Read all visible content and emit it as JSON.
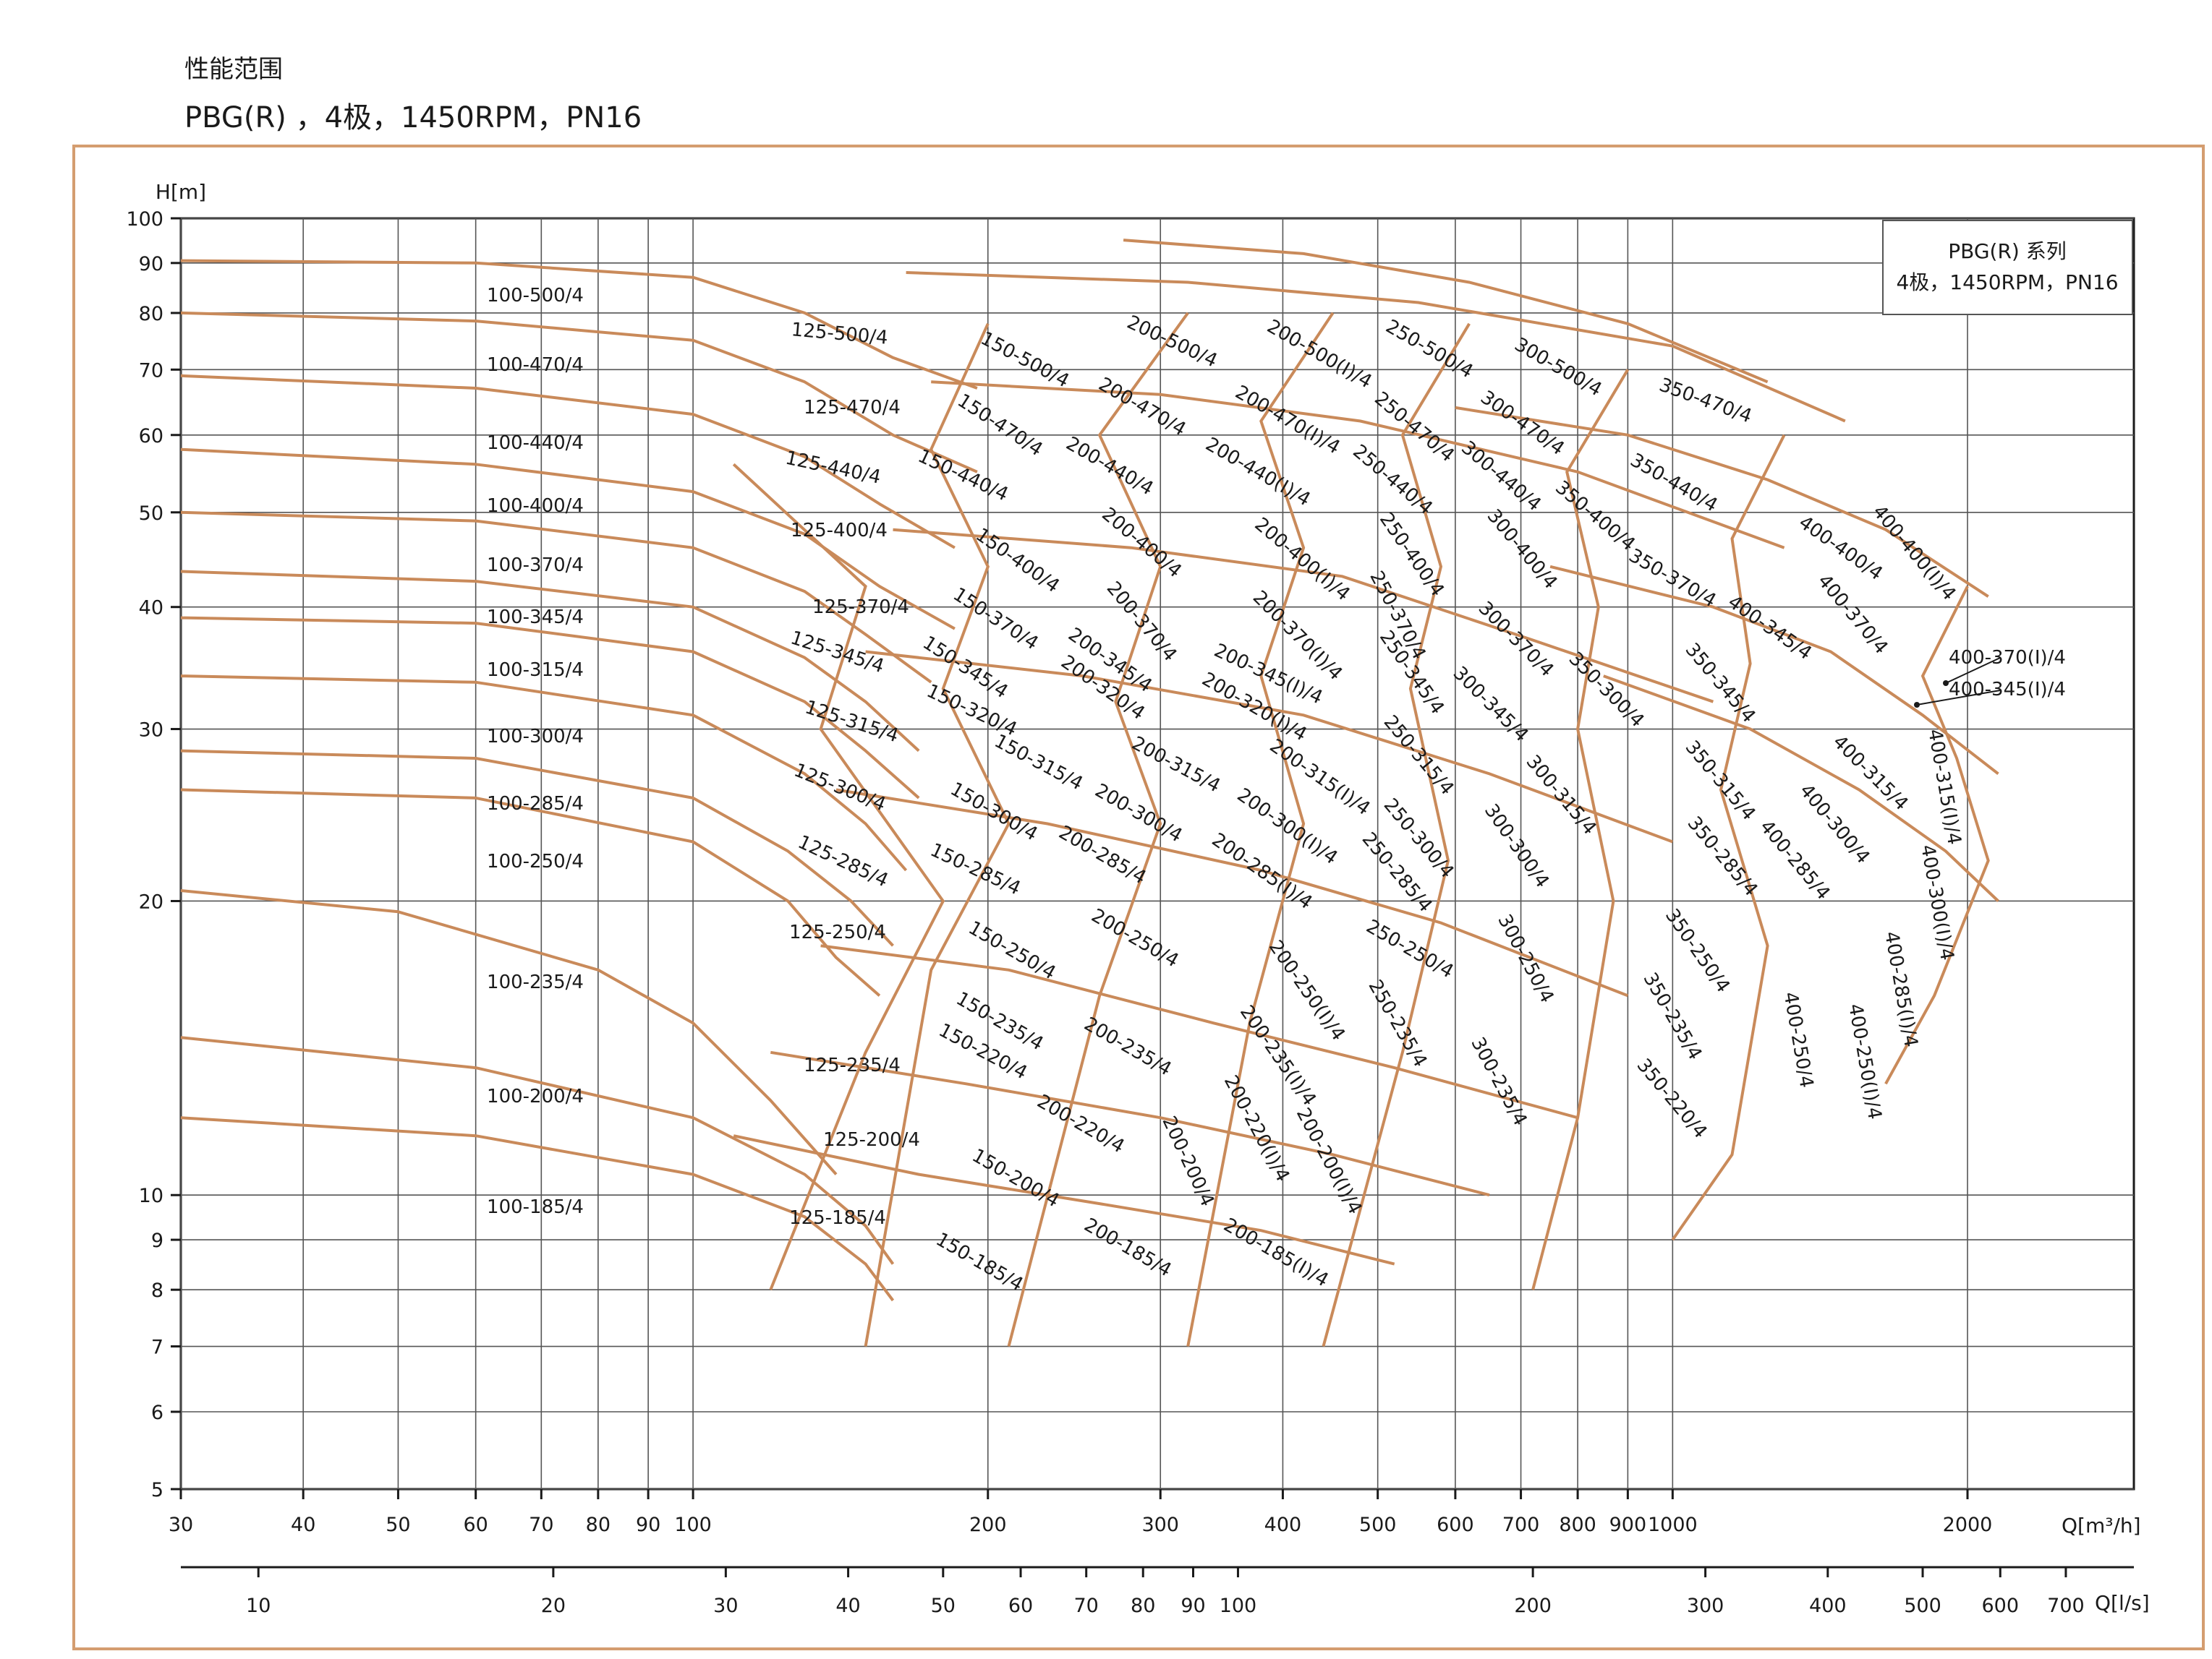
{
  "header": {
    "title": "性能范围",
    "subtitle": "PBG(R) ，4极，1450RPM，PN16"
  },
  "colors": {
    "curve": "#c98a5a",
    "frame": "#d49d70",
    "grid": "#555555",
    "axis": "#1a1a1a"
  },
  "chart_data": {
    "type": "line",
    "title": "性能范围",
    "subtitle": "PBG(R) ，4极，1450RPM，PN16",
    "legend_box": [
      "PBG(R) 系列",
      "4极，1450RPM，PN16"
    ],
    "legend_placement": "top-right",
    "x_scale": "log",
    "y_scale": "log",
    "grid": true,
    "xlabel": "Q[m³/h]",
    "x2label": "Q[l/s]",
    "ylabel": "H[m]",
    "xlim": [
      30,
      2200
    ],
    "ylim": [
      5,
      100
    ],
    "x_ticks": [
      {
        "v": 30,
        "t": "30"
      },
      {
        "v": 40,
        "t": "40"
      },
      {
        "v": 50,
        "t": "50"
      },
      {
        "v": 60,
        "t": "60"
      },
      {
        "v": 70,
        "t": "70"
      },
      {
        "v": 80,
        "t": "80"
      },
      {
        "v": 90,
        "t": "90"
      },
      {
        "v": 100,
        "t": "100"
      },
      {
        "v": 200,
        "t": "200"
      },
      {
        "v": 300,
        "t": "300"
      },
      {
        "v": 400,
        "t": "400"
      },
      {
        "v": 500,
        "t": "500"
      },
      {
        "v": 600,
        "t": "600"
      },
      {
        "v": 700,
        "t": "700"
      },
      {
        "v": 800,
        "t": "800"
      },
      {
        "v": 900,
        "t": "900"
      },
      {
        "v": 1000,
        "t": "1000"
      },
      {
        "v": 2000,
        "t": "2000"
      }
    ],
    "x2_ticks": [
      {
        "v": 10,
        "t": "10"
      },
      {
        "v": 20,
        "t": "20"
      },
      {
        "v": 30,
        "t": "30"
      },
      {
        "v": 40,
        "t": "40"
      },
      {
        "v": 50,
        "t": "50"
      },
      {
        "v": 60,
        "t": "60"
      },
      {
        "v": 70,
        "t": "70"
      },
      {
        "v": 80,
        "t": "80"
      },
      {
        "v": 90,
        "t": "90"
      },
      {
        "v": 100,
        "t": "100"
      },
      {
        "v": 200,
        "t": "200"
      },
      {
        "v": 300,
        "t": "300"
      },
      {
        "v": 400,
        "t": "400"
      },
      {
        "v": 500,
        "t": "500"
      },
      {
        "v": 600,
        "t": "600"
      },
      {
        "v": 700,
        "t": "700"
      }
    ],
    "y_ticks": [
      {
        "v": 5,
        "t": "5"
      },
      {
        "v": 6,
        "t": "6"
      },
      {
        "v": 7,
        "t": "7"
      },
      {
        "v": 8,
        "t": "8"
      },
      {
        "v": 9,
        "t": "9"
      },
      {
        "v": 10,
        "t": "10"
      },
      {
        "v": 20,
        "t": "20"
      },
      {
        "v": 30,
        "t": "30"
      },
      {
        "v": 40,
        "t": "40"
      },
      {
        "v": 50,
        "t": "50"
      },
      {
        "v": 60,
        "t": "60"
      },
      {
        "v": 70,
        "t": "70"
      },
      {
        "v": 80,
        "t": "80"
      },
      {
        "v": 90,
        "t": "90"
      },
      {
        "v": 100,
        "t": "100"
      }
    ],
    "curves": [
      {
        "name": "100-500/4",
        "x": [
          30,
          60,
          100,
          130,
          160,
          195
        ],
        "y": [
          90.5,
          90,
          87,
          80,
          72,
          67
        ]
      },
      {
        "name": "100-470/4",
        "x": [
          30,
          60,
          100,
          130,
          160,
          195
        ],
        "y": [
          80,
          78.5,
          75,
          68,
          60,
          55
        ]
      },
      {
        "name": "100-440/4",
        "x": [
          30,
          60,
          100,
          130,
          155,
          185
        ],
        "y": [
          69,
          67,
          63,
          57,
          51,
          46
        ]
      },
      {
        "name": "100-400/4",
        "x": [
          30,
          60,
          100,
          130,
          155,
          185
        ],
        "y": [
          58,
          56,
          52.5,
          47.5,
          42,
          38
        ]
      },
      {
        "name": "100-370/4",
        "x": [
          30,
          60,
          100,
          130,
          150,
          175
        ],
        "y": [
          50,
          49,
          46,
          41.5,
          37.5,
          33.5
        ]
      },
      {
        "name": "100-345/4",
        "x": [
          30,
          60,
          100,
          130,
          150,
          170
        ],
        "y": [
          43.5,
          42.5,
          40,
          35.5,
          32,
          28.5
        ]
      },
      {
        "name": "100-315/4",
        "x": [
          30,
          60,
          100,
          130,
          150,
          170
        ],
        "y": [
          39,
          38.5,
          36,
          32,
          28.5,
          25.5
        ]
      },
      {
        "name": "100-300/4",
        "x": [
          30,
          60,
          100,
          130,
          150,
          165
        ],
        "y": [
          34,
          33.5,
          31,
          27,
          24,
          21.5
        ]
      },
      {
        "name": "100-285/4",
        "x": [
          30,
          60,
          100,
          125,
          145,
          160
        ],
        "y": [
          28.5,
          28,
          25.5,
          22.5,
          20,
          18
        ]
      },
      {
        "name": "100-250/4",
        "x": [
          30,
          60,
          100,
          125,
          140,
          155
        ],
        "y": [
          26,
          25.5,
          23,
          20,
          17.5,
          16
        ]
      },
      {
        "name": "100-235/4",
        "x": [
          30,
          50,
          80,
          100,
          120,
          140
        ],
        "y": [
          20.5,
          19.5,
          17,
          15,
          12.5,
          10.5
        ]
      },
      {
        "name": "100-200/4",
        "x": [
          30,
          60,
          100,
          130,
          150,
          160
        ],
        "y": [
          14.5,
          13.5,
          12,
          10.5,
          9.3,
          8.5
        ]
      },
      {
        "name": "100-185/4",
        "x": [
          30,
          60,
          100,
          130,
          150,
          160
        ],
        "y": [
          12,
          11.5,
          10.5,
          9.5,
          8.5,
          7.8
        ]
      }
    ],
    "region_labels": [
      "100-500/4",
      "100-470/4",
      "100-440/4",
      "100-400/4",
      "100-370/4",
      "100-345/4",
      "100-315/4",
      "100-300/4",
      "100-285/4",
      "100-250/4",
      "100-235/4",
      "100-200/4",
      "100-185/4",
      "125-500/4",
      "125-470/4",
      "125-440/4",
      "125-400/4",
      "125-370/4",
      "125-345/4",
      "125-315/4",
      "125-300/4",
      "125-285/4",
      "125-250/4",
      "125-235/4",
      "125-200/4",
      "125-185/4",
      "150-500/4",
      "150-470/4",
      "150-440/4",
      "150-400/4",
      "150-370/4",
      "150-345/4",
      "150-320/4",
      "150-315/4",
      "150-300/4",
      "150-285/4",
      "150-250/4",
      "150-235/4",
      "150-220/4",
      "150-200/4",
      "150-185/4",
      "200-500/4",
      "200-470/4",
      "200-440/4",
      "200-400/4",
      "200-370/4",
      "200-345/4",
      "200-320/4",
      "200-315/4",
      "200-300/4",
      "200-285/4",
      "200-250/4",
      "200-235/4",
      "200-220/4",
      "200-200/4",
      "200-185/4",
      "200-500(I)/4",
      "200-470(I)/4",
      "200-440(I)/4",
      "200-400(I)/4",
      "200-370(I)/4",
      "200-345(I)/4",
      "200-320(I)/4",
      "200-315(I)/4",
      "200-300(I)/4",
      "200-285(I)/4",
      "200-250(I)/4",
      "200-235(I)/4",
      "200-220(I)/4",
      "200-200(I)/4",
      "200-185(I)/4",
      "250-500/4",
      "250-470/4",
      "250-440/4",
      "250-400/4",
      "250-370/4",
      "250-345/4",
      "250-315/4",
      "250-300/4",
      "250-285/4",
      "250-250/4",
      "250-235/4",
      "300-500/4",
      "300-470/4",
      "300-440/4",
      "300-400/4",
      "300-370/4",
      "300-345/4",
      "300-315/4",
      "300-300/4",
      "300-250/4",
      "300-235/4",
      "350-470/4",
      "350-440/4",
      "350-400/4",
      "350-370/4",
      "350-345/4",
      "350-300/4",
      "350-315/4",
      "350-285/4",
      "350-250/4",
      "350-235/4",
      "350-220/4",
      "400-400/4",
      "400-400(I)/4",
      "400-370/4",
      "400-345/4",
      "400-315/4",
      "400-315(I)/4",
      "400-300/4",
      "400-300(I)/4",
      "400-285/4",
      "400-285(I)/4",
      "400-250/4",
      "400-250(I)/4",
      "400-370(I)/4",
      "400-345(I)/4"
    ]
  }
}
